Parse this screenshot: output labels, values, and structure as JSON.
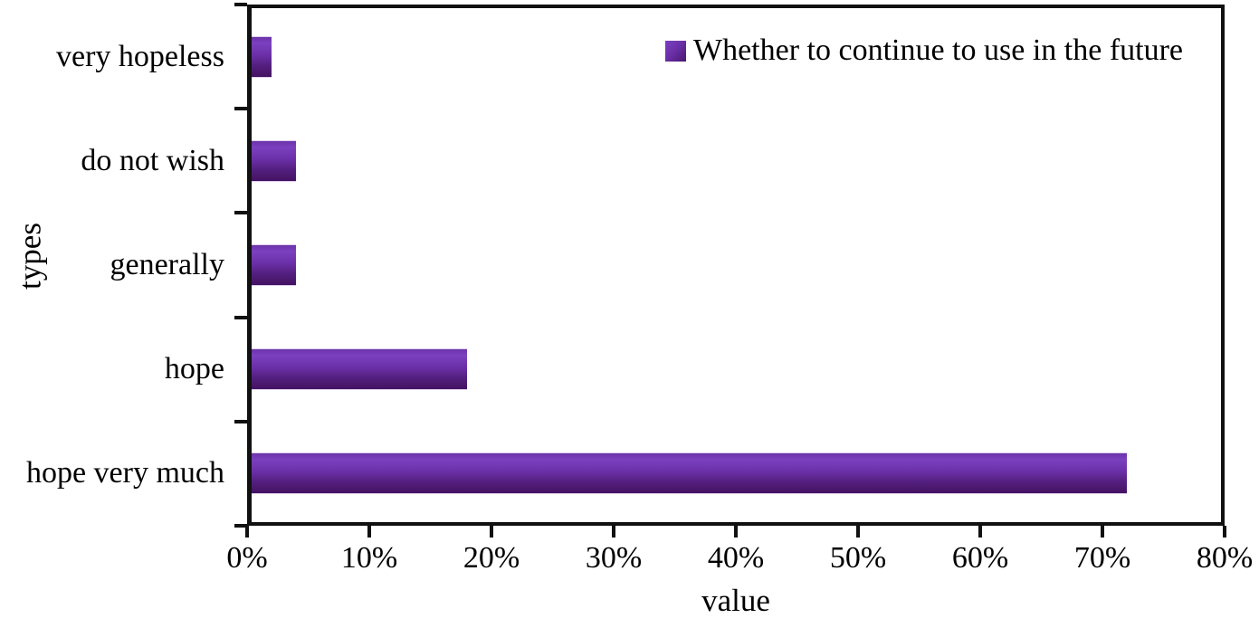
{
  "chart_data": {
    "type": "bar",
    "orientation": "horizontal",
    "series_name": "Whether to continue to use in the future",
    "categories": [
      "very hopeless",
      "do not wish",
      "generally",
      "hope",
      "hope very much"
    ],
    "values": [
      2,
      4,
      4,
      18,
      72
    ],
    "unit": "%",
    "xlabel": "value",
    "ylabel": "types",
    "xlim": [
      0,
      80
    ],
    "xtick_labels": [
      "0%",
      "10%",
      "20%",
      "30%",
      "40%",
      "50%",
      "60%",
      "70%",
      "80%"
    ],
    "grid": false,
    "legend_position": "top-right-inside",
    "bar_color": "#6b30a8",
    "axis_color": "#111111",
    "text_color": "#000000",
    "background_color": "#ffffff"
  }
}
